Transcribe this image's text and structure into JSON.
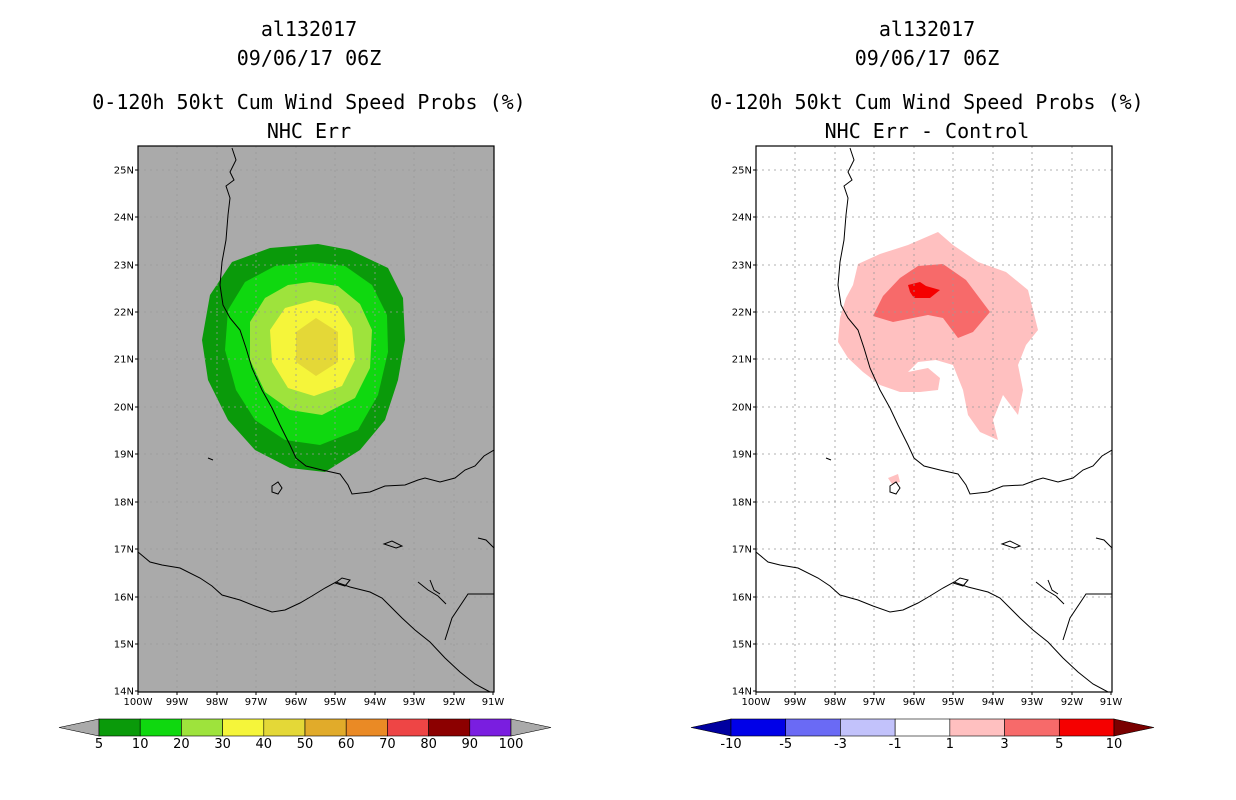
{
  "panels": [
    {
      "id": "left",
      "storm_id": "al132017",
      "datetime": "09/06/17 06Z",
      "title": "0-120h 50kt Cum Wind Speed Probs (%)",
      "subtitle": "NHC Err",
      "background": "#aaaaaa",
      "colorbar": {
        "labels": [
          "5",
          "10",
          "20",
          "30",
          "40",
          "50",
          "60",
          "70",
          "80",
          "90",
          "100"
        ],
        "colors": [
          "#0a9a0a",
          "#0fd80f",
          "#9ee33c",
          "#f5f53a",
          "#e4d837",
          "#e1ab2a",
          "#ea8a25",
          "#ee4545",
          "#8c0000",
          "#7a1ee0"
        ],
        "under_color": "#aaaaaa",
        "over_color": "#aaaaaa"
      }
    },
    {
      "id": "right",
      "storm_id": "al132017",
      "datetime": "09/06/17 06Z",
      "title": "0-120h 50kt Cum Wind Speed Probs (%)",
      "subtitle": "NHC Err - Control",
      "background": "#ffffff",
      "colorbar": {
        "labels": [
          "-10",
          "-5",
          "-3",
          "-1",
          "1",
          "3",
          "5",
          "10"
        ],
        "colors": [
          "#0000e8",
          "#6a6af5",
          "#c2c2fb",
          "#ffffff",
          "#ffc0c0",
          "#f76a6a",
          "#f50000"
        ],
        "under_color": "#0000a0",
        "over_color": "#7a0000"
      }
    }
  ],
  "axes": {
    "lat_labels": [
      "25N",
      "24N",
      "23N",
      "22N",
      "21N",
      "20N",
      "19N",
      "18N",
      "17N",
      "16N",
      "15N",
      "14N"
    ],
    "lon_labels": [
      "100W",
      "99W",
      "98W",
      "97W",
      "96W",
      "95W",
      "94W",
      "93W",
      "92W",
      "91W"
    ]
  }
}
